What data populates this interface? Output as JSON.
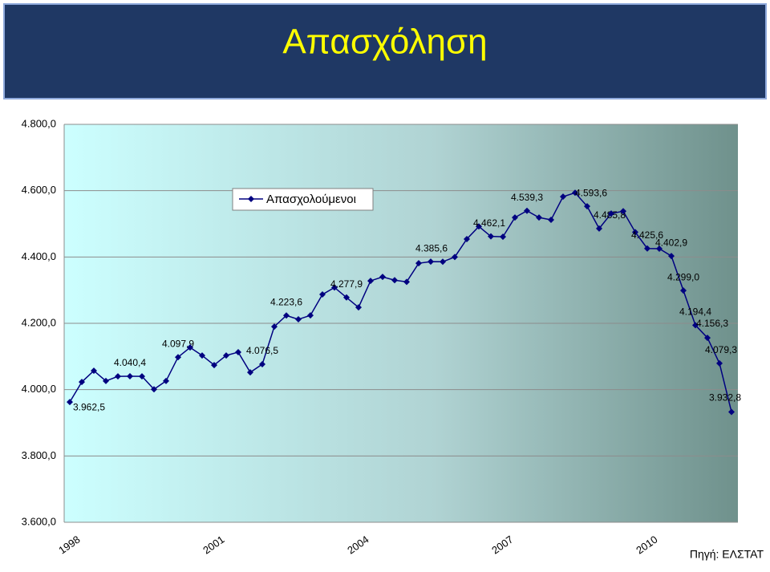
{
  "chart_data": {
    "type": "line",
    "title": "Απασχόληση",
    "source": "Πηγή: ΕΛΣΤΑΤ",
    "categories": [
      "1998",
      null,
      null,
      null,
      null,
      null,
      null,
      null,
      null,
      null,
      null,
      null,
      "2001",
      null,
      null,
      null,
      null,
      null,
      null,
      null,
      null,
      null,
      null,
      null,
      "2004",
      null,
      null,
      null,
      null,
      null,
      null,
      null,
      null,
      null,
      null,
      null,
      "2007",
      null,
      null,
      null,
      null,
      null,
      null,
      null,
      null,
      null,
      null,
      null,
      "2010",
      null,
      null,
      null,
      null,
      null,
      null,
      null
    ],
    "series": [
      {
        "name": "Απασχολούμενοι",
        "color": "#000080",
        "values": [
          3962.5,
          4023,
          4057,
          4026,
          4040,
          4040.4,
          4040,
          4001,
          4026,
          4097.9,
          4127,
          4103,
          4074,
          4103,
          4113,
          4052,
          4076.5,
          4190,
          4223.6,
          4212,
          4224,
          4287,
          4308,
          4277.9,
          4248,
          4328,
          4340,
          4330,
          4325,
          4381,
          4386,
          4385.6,
          4400,
          4454,
          4492,
          4462.1,
          4461,
          4519,
          4539.3,
          4519,
          4512,
          4582,
          4593.6,
          4553,
          4485.8,
          4531,
          4538,
          4475,
          4425.6,
          4425,
          4402.9,
          4299.0,
          4194.4,
          4156.3,
          4079.3,
          3932.8
        ],
        "value_labels": [
          "3.962,5",
          null,
          null,
          null,
          null,
          "4.040,4",
          null,
          null,
          null,
          "4.097,9",
          null,
          null,
          null,
          null,
          null,
          null,
          "4.076,5",
          null,
          "4.223,6",
          null,
          null,
          null,
          null,
          "4.277,9",
          null,
          null,
          null,
          null,
          null,
          null,
          null,
          "4.385,6",
          null,
          null,
          null,
          "4.462,1",
          null,
          null,
          "4.539,3",
          null,
          null,
          null,
          "4.593,6",
          null,
          "4.485,8",
          null,
          null,
          null,
          "4.425,6",
          null,
          "4.402,9",
          "4.299,0",
          "4.194,4",
          "4.156,3",
          "4.079,3",
          "3.932,8"
        ]
      }
    ],
    "ylim": [
      3600,
      4800
    ],
    "yticks": [
      {
        "value": 3600,
        "label": "3.600,0"
      },
      {
        "value": 3800,
        "label": "3.800,0"
      },
      {
        "value": 4000,
        "label": "4.000,0"
      },
      {
        "value": 4200,
        "label": "4.200,0"
      },
      {
        "value": 4400,
        "label": "4.400,0"
      },
      {
        "value": 4600,
        "label": "4.600,0"
      },
      {
        "value": 4800,
        "label": "4.800,0"
      }
    ],
    "grid": true,
    "legend": "top-left"
  }
}
